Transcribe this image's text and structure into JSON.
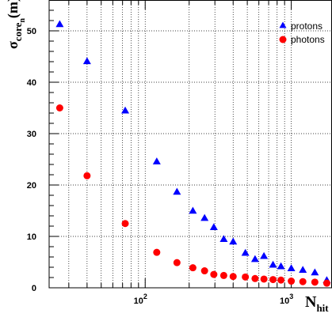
{
  "chart_data": {
    "type": "scatter",
    "x_scale": "log",
    "xlim": [
      22,
      1900
    ],
    "ylim": [
      0,
      56
    ],
    "grid": true,
    "legend_position": "top-right",
    "xlabel": {
      "main": "N",
      "sub": "hit"
    },
    "ylabel": {
      "main": "σ",
      "sub": "core",
      "subsub": "n",
      "rest": "(m)"
    },
    "y_ticks": [
      0,
      10,
      20,
      30,
      40,
      50
    ],
    "y_tick_labels": [
      "0",
      "10",
      "20",
      "30",
      "40",
      "50"
    ],
    "x_tick_labels": [
      {
        "value": 100,
        "base": "10",
        "exp": "2"
      },
      {
        "value": 1000,
        "base": "10",
        "exp": "3"
      }
    ],
    "series": [
      {
        "name": "protons",
        "marker": "triangle",
        "color": "#0000ff",
        "points": [
          [
            26,
            51.3
          ],
          [
            40,
            44.1
          ],
          [
            73,
            34.5
          ],
          [
            120,
            24.6
          ],
          [
            165,
            18.7
          ],
          [
            212,
            15.0
          ],
          [
            255,
            13.6
          ],
          [
            295,
            11.8
          ],
          [
            345,
            9.5
          ],
          [
            400,
            9.0
          ],
          [
            485,
            6.8
          ],
          [
            565,
            5.6
          ],
          [
            650,
            6.2
          ],
          [
            750,
            4.5
          ],
          [
            850,
            4.2
          ],
          [
            1000,
            3.8
          ],
          [
            1200,
            3.5
          ],
          [
            1450,
            3.0
          ],
          [
            1750,
            1.5
          ]
        ]
      },
      {
        "name": "photons",
        "marker": "circle",
        "color": "#ff0000",
        "points": [
          [
            26,
            35.0
          ],
          [
            40,
            21.8
          ],
          [
            73,
            12.5
          ],
          [
            120,
            6.9
          ],
          [
            165,
            4.9
          ],
          [
            212,
            3.9
          ],
          [
            255,
            3.3
          ],
          [
            295,
            2.6
          ],
          [
            345,
            2.4
          ],
          [
            400,
            2.2
          ],
          [
            485,
            2.1
          ],
          [
            565,
            1.8
          ],
          [
            650,
            1.7
          ],
          [
            750,
            1.6
          ],
          [
            850,
            1.5
          ],
          [
            1000,
            1.3
          ],
          [
            1200,
            1.2
          ],
          [
            1450,
            1.1
          ],
          [
            1750,
            0.9
          ]
        ]
      }
    ]
  }
}
